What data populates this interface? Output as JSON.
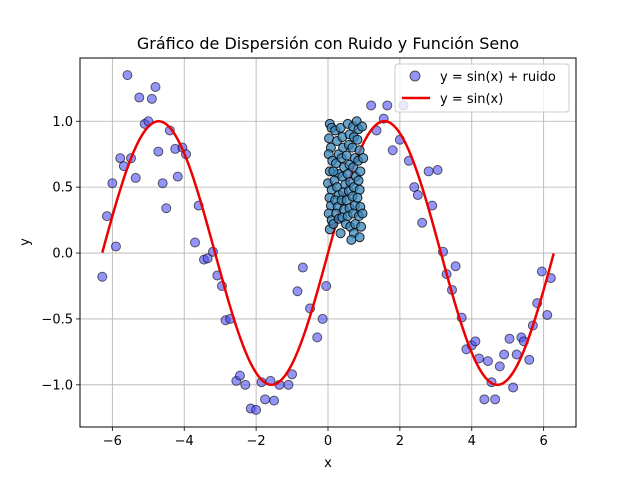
{
  "chart_data": {
    "type": "scatter",
    "title": "Gráfico de Dispersión con Ruido y Función Seno",
    "xlabel": "x",
    "ylabel": "y",
    "xlim": [
      -6.9,
      6.9
    ],
    "ylim": [
      -1.32,
      1.48
    ],
    "xticks": [
      -6,
      -4,
      -2,
      0,
      2,
      4,
      6
    ],
    "xtick_labels": [
      "−6",
      "−4",
      "−2",
      "0",
      "2",
      "4",
      "6"
    ],
    "yticks": [
      -1.0,
      -0.5,
      0.0,
      0.5,
      1.0
    ],
    "ytick_labels": [
      "−1.0",
      "−0.5",
      "0.0",
      "0.5",
      "1.0"
    ],
    "grid": true,
    "legend_position": "top-right",
    "colors": {
      "noise_points": "#4f4ff5",
      "curve": "#ee0000",
      "cluster_points": "#3a86b8"
    },
    "series": [
      {
        "name": "y = sin(x) + ruido",
        "kind": "scatter",
        "points": [
          [
            -6.28,
            -0.18
          ],
          [
            -6.15,
            0.28
          ],
          [
            -6.0,
            0.53
          ],
          [
            -5.9,
            0.05
          ],
          [
            -5.78,
            0.72
          ],
          [
            -5.68,
            0.66
          ],
          [
            -5.58,
            1.35
          ],
          [
            -5.48,
            0.72
          ],
          [
            -5.35,
            0.57
          ],
          [
            -5.25,
            1.18
          ],
          [
            -5.1,
            0.98
          ],
          [
            -5.0,
            1.0
          ],
          [
            -4.9,
            1.17
          ],
          [
            -4.8,
            1.26
          ],
          [
            -4.72,
            0.77
          ],
          [
            -4.6,
            0.53
          ],
          [
            -4.5,
            0.34
          ],
          [
            -4.4,
            0.93
          ],
          [
            -4.25,
            0.79
          ],
          [
            -4.18,
            0.58
          ],
          [
            -4.05,
            0.8
          ],
          [
            -3.95,
            0.75
          ],
          [
            -3.7,
            0.08
          ],
          [
            -3.6,
            0.36
          ],
          [
            -3.45,
            -0.05
          ],
          [
            -3.35,
            -0.04
          ],
          [
            -3.2,
            0.01
          ],
          [
            -3.08,
            -0.17
          ],
          [
            -2.95,
            -0.25
          ],
          [
            -2.85,
            -0.51
          ],
          [
            -2.72,
            -0.5
          ],
          [
            -2.55,
            -0.97
          ],
          [
            -2.45,
            -0.93
          ],
          [
            -2.3,
            -1.0
          ],
          [
            -2.15,
            -1.18
          ],
          [
            -2.0,
            -1.19
          ],
          [
            -1.85,
            -0.98
          ],
          [
            -1.75,
            -1.11
          ],
          [
            -1.6,
            -0.97
          ],
          [
            -1.5,
            -1.12
          ],
          [
            -1.35,
            -1.0
          ],
          [
            -1.1,
            -1.0
          ],
          [
            -1.0,
            -0.92
          ],
          [
            -0.85,
            -0.29
          ],
          [
            -0.7,
            -0.11
          ],
          [
            -0.5,
            -0.42
          ],
          [
            -0.3,
            -0.64
          ],
          [
            -0.15,
            -0.5
          ],
          [
            -0.05,
            -0.25
          ],
          [
            1.2,
            1.12
          ],
          [
            1.35,
            0.93
          ],
          [
            1.55,
            1.02
          ],
          [
            1.65,
            1.12
          ],
          [
            1.8,
            0.78
          ],
          [
            2.0,
            0.86
          ],
          [
            2.1,
            1.12
          ],
          [
            2.25,
            0.7
          ],
          [
            2.4,
            0.5
          ],
          [
            2.5,
            0.44
          ],
          [
            2.62,
            0.23
          ],
          [
            2.8,
            0.62
          ],
          [
            2.9,
            0.36
          ],
          [
            3.05,
            0.63
          ],
          [
            3.2,
            0.01
          ],
          [
            3.3,
            -0.16
          ],
          [
            3.45,
            -0.28
          ],
          [
            3.55,
            -0.1
          ],
          [
            3.72,
            -0.49
          ],
          [
            3.85,
            -0.73
          ],
          [
            4.0,
            -0.7
          ],
          [
            4.1,
            -0.67
          ],
          [
            4.2,
            -0.8
          ],
          [
            4.35,
            -1.11
          ],
          [
            4.45,
            -0.82
          ],
          [
            4.55,
            -0.98
          ],
          [
            4.65,
            -1.11
          ],
          [
            4.78,
            -0.86
          ],
          [
            4.9,
            -0.77
          ],
          [
            5.05,
            -0.65
          ],
          [
            5.15,
            -1.02
          ],
          [
            5.25,
            -0.77
          ],
          [
            5.38,
            -0.64
          ],
          [
            5.45,
            -0.67
          ],
          [
            5.6,
            -0.81
          ],
          [
            5.7,
            -0.55
          ],
          [
            5.82,
            -0.38
          ],
          [
            5.95,
            -0.14
          ],
          [
            6.1,
            -0.47
          ],
          [
            6.2,
            -0.19
          ]
        ]
      },
      {
        "name": "y = sin(x)",
        "kind": "line",
        "function": "sin",
        "domain": [
          -6.28,
          6.28
        ]
      },
      {
        "kind": "scatter",
        "points": [
          [
            0.05,
            0.98
          ],
          [
            0.1,
            0.95
          ],
          [
            0.03,
            0.87
          ],
          [
            0.08,
            0.8
          ],
          [
            0.02,
            0.75
          ],
          [
            0.12,
            0.7
          ],
          [
            0.05,
            0.62
          ],
          [
            0.0,
            0.53
          ],
          [
            0.1,
            0.48
          ],
          [
            0.04,
            0.42
          ],
          [
            0.08,
            0.36
          ],
          [
            0.02,
            0.3
          ],
          [
            0.1,
            0.25
          ],
          [
            0.05,
            0.18
          ],
          [
            0.15,
            0.22
          ],
          [
            0.2,
            0.93
          ],
          [
            0.25,
            0.85
          ],
          [
            0.3,
            0.75
          ],
          [
            0.22,
            0.68
          ],
          [
            0.28,
            0.6
          ],
          [
            0.18,
            0.55
          ],
          [
            0.25,
            0.5
          ],
          [
            0.3,
            0.44
          ],
          [
            0.2,
            0.4
          ],
          [
            0.27,
            0.35
          ],
          [
            0.23,
            0.3
          ],
          [
            0.3,
            0.26
          ],
          [
            0.35,
            0.95
          ],
          [
            0.4,
            0.88
          ],
          [
            0.42,
            0.8
          ],
          [
            0.38,
            0.72
          ],
          [
            0.45,
            0.65
          ],
          [
            0.4,
            0.58
          ],
          [
            0.48,
            0.52
          ],
          [
            0.42,
            0.46
          ],
          [
            0.38,
            0.4
          ],
          [
            0.45,
            0.33
          ],
          [
            0.4,
            0.27
          ],
          [
            0.5,
            0.22
          ],
          [
            0.55,
            0.98
          ],
          [
            0.6,
            0.9
          ],
          [
            0.58,
            0.82
          ],
          [
            0.52,
            0.74
          ],
          [
            0.6,
            0.67
          ],
          [
            0.55,
            0.6
          ],
          [
            0.62,
            0.54
          ],
          [
            0.58,
            0.47
          ],
          [
            0.52,
            0.4
          ],
          [
            0.6,
            0.34
          ],
          [
            0.55,
            0.28
          ],
          [
            0.62,
            0.2
          ],
          [
            0.7,
            0.96
          ],
          [
            0.72,
            0.88
          ],
          [
            0.68,
            0.8
          ],
          [
            0.75,
            0.72
          ],
          [
            0.7,
            0.65
          ],
          [
            0.78,
            0.58
          ],
          [
            0.72,
            0.5
          ],
          [
            0.68,
            0.43
          ],
          [
            0.75,
            0.36
          ],
          [
            0.7,
            0.3
          ],
          [
            0.76,
            0.22
          ],
          [
            0.72,
            0.15
          ],
          [
            0.8,
            1.0
          ],
          [
            0.85,
            0.94
          ],
          [
            0.82,
            0.86
          ],
          [
            0.88,
            0.78
          ],
          [
            0.84,
            0.7
          ],
          [
            0.9,
            0.62
          ],
          [
            0.85,
            0.55
          ],
          [
            0.88,
            0.48
          ],
          [
            0.82,
            0.42
          ],
          [
            0.9,
            0.35
          ],
          [
            0.86,
            0.28
          ],
          [
            0.92,
            0.2
          ],
          [
            0.88,
            0.12
          ],
          [
            0.95,
            0.96
          ],
          [
            0.98,
            0.72
          ],
          [
            0.96,
            0.3
          ],
          [
            0.35,
            0.15
          ],
          [
            0.15,
            0.62
          ],
          [
            0.65,
            0.1
          ]
        ]
      }
    ]
  }
}
